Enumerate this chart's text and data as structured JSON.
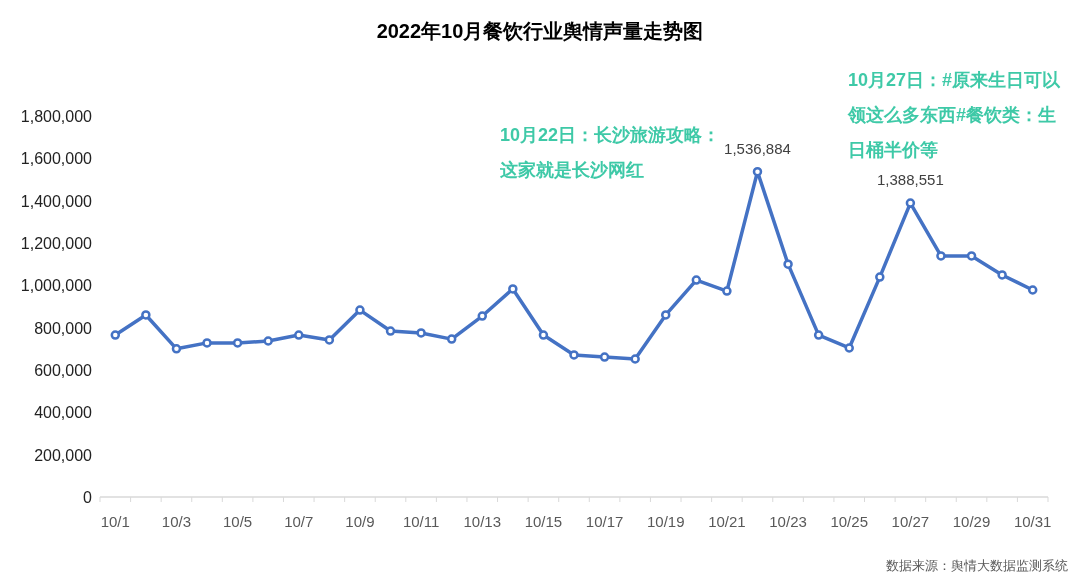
{
  "chart_data": {
    "type": "line",
    "title": "2022年10月餐饮行业舆情声量走势图",
    "categories": [
      "10/1",
      null,
      "10/3",
      null,
      "10/5",
      null,
      "10/7",
      null,
      "10/9",
      null,
      "10/11",
      null,
      "10/13",
      null,
      "10/15",
      null,
      "10/17",
      null,
      "10/19",
      null,
      "10/21",
      null,
      "10/23",
      null,
      "10/25",
      null,
      "10/27",
      null,
      "10/29",
      null,
      "10/31"
    ],
    "series": [
      {
        "color": "#4472c4",
        "values": [
          765000,
          860000,
          700000,
          728000,
          728000,
          737000,
          765000,
          742000,
          883000,
          784000,
          775000,
          746000,
          855000,
          983000,
          765000,
          671000,
          661000,
          652000,
          860000,
          1025000,
          973000,
          1536884,
          1100000,
          765000,
          704000,
          1039000,
          1388551,
          1139000,
          1139000,
          1049000,
          978000
        ],
        "value_labels": [
          null,
          null,
          null,
          null,
          null,
          null,
          null,
          null,
          null,
          null,
          null,
          null,
          null,
          null,
          null,
          null,
          null,
          null,
          null,
          null,
          null,
          "1,536,884",
          null,
          null,
          null,
          null,
          "1,388,551",
          null,
          null,
          null,
          null
        ]
      }
    ],
    "ylim": [
      0,
      1800000
    ],
    "yticks": [
      {
        "value": 0,
        "label": "0"
      },
      {
        "value": 200000,
        "label": "200,000"
      },
      {
        "value": 400000,
        "label": "400,000"
      },
      {
        "value": 600000,
        "label": "600,000"
      },
      {
        "value": 800000,
        "label": "800,000"
      },
      {
        "value": 1000000,
        "label": "1,000,000"
      },
      {
        "value": 1200000,
        "label": "1,200,000"
      },
      {
        "value": 1400000,
        "label": "1,400,000"
      },
      {
        "value": 1600000,
        "label": "1,600,000"
      },
      {
        "value": 1800000,
        "label": "1,800,000"
      }
    ],
    "grid": false,
    "marker": "circle",
    "line_style": "solid",
    "annotations": [
      "10月22日：长沙旅游攻略：这家就是长沙网红",
      "10月27日：#原来生日可以领这么多东西#餐饮类：生日桶半价等",
      "数据来源：舆情大数据监测系统"
    ]
  }
}
